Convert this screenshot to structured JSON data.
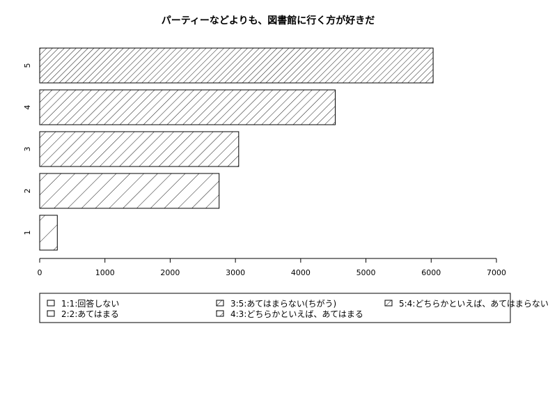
{
  "chart_data": {
    "type": "bar",
    "orientation": "horizontal",
    "title": "パーティーなどよりも、図書館に行く方が好きだ",
    "categories": [
      "1",
      "2",
      "3",
      "4",
      "5"
    ],
    "values": [
      270,
      2750,
      3050,
      4530,
      6030
    ],
    "xlim": [
      0,
      7000
    ],
    "xticks": [
      0,
      1000,
      2000,
      3000,
      4000,
      5000,
      6000,
      7000
    ],
    "grid": false,
    "legend_position": "bottom",
    "legend": [
      "1:1:回答しない",
      "2:2:あてはまる",
      "3:5:あてはまらない(ちがう)",
      "4:3:どちらかといえば、あてはまる",
      "5:4:どちらかといえば、あてはまらない"
    ]
  }
}
